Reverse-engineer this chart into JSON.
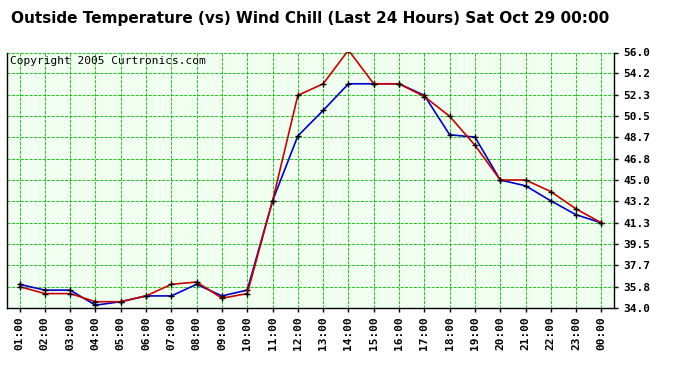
{
  "title": "Outside Temperature (vs) Wind Chill (Last 24 Hours) Sat Oct 29 00:00",
  "copyright": "Copyright 2005 Curtronics.com",
  "x_labels": [
    "01:00",
    "02:00",
    "03:00",
    "04:00",
    "05:00",
    "06:00",
    "07:00",
    "08:00",
    "09:00",
    "10:00",
    "11:00",
    "12:00",
    "13:00",
    "14:00",
    "15:00",
    "16:00",
    "17:00",
    "18:00",
    "19:00",
    "20:00",
    "21:00",
    "22:00",
    "23:00",
    "00:00"
  ],
  "outside_temp": [
    36.0,
    35.5,
    35.5,
    34.2,
    34.5,
    35.0,
    35.0,
    36.0,
    35.0,
    35.5,
    43.2,
    48.8,
    51.0,
    53.3,
    53.3,
    53.3,
    52.3,
    48.9,
    48.7,
    45.0,
    44.5,
    43.2,
    42.0,
    41.3
  ],
  "wind_chill": [
    35.8,
    35.2,
    35.2,
    34.5,
    34.5,
    35.0,
    36.0,
    36.2,
    34.8,
    35.2,
    43.2,
    52.3,
    53.3,
    56.2,
    53.3,
    53.3,
    52.2,
    50.5,
    48.0,
    45.0,
    45.0,
    44.0,
    42.5,
    41.3
  ],
  "temp_color": "#0000cc",
  "windchill_color": "#cc0000",
  "background_color": "#ffffff",
  "plot_background": "#f0fff0",
  "grid_color": "#00bb00",
  "title_color": "#000000",
  "ylim": [
    34.0,
    56.0
  ],
  "yticks": [
    34.0,
    35.8,
    37.7,
    39.5,
    41.3,
    43.2,
    45.0,
    46.8,
    48.7,
    50.5,
    52.3,
    54.2,
    56.0
  ],
  "ytick_labels": [
    "34.0",
    "35.8",
    "37.7",
    "39.5",
    "41.3",
    "43.2",
    "45.0",
    "46.8",
    "48.7",
    "50.5",
    "52.3",
    "54.2",
    "56.0"
  ],
  "title_fontsize": 11,
  "copyright_fontsize": 8,
  "tick_fontsize": 8
}
